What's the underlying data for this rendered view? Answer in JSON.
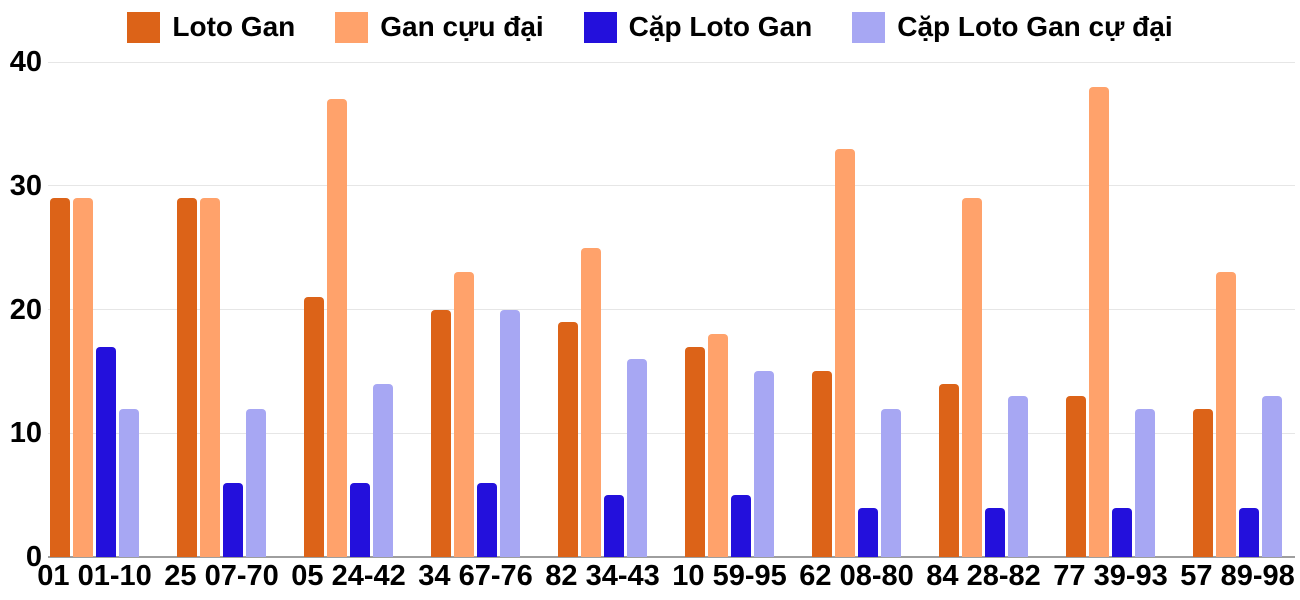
{
  "chart_data": {
    "type": "bar",
    "title": "",
    "categories": [
      "01 01-10",
      "25 07-70",
      "05 24-42",
      "34 67-76",
      "82 34-43",
      "10 59-95",
      "62 08-80",
      "84 28-82",
      "77 39-93",
      "57 89-98"
    ],
    "series": [
      {
        "name": "Loto Gan",
        "color": "#DC6318",
        "values": [
          29,
          29,
          21,
          20,
          19,
          17,
          15,
          14,
          13,
          12
        ]
      },
      {
        "name": "Gan cựu đại",
        "color": "#FFA26B",
        "values": [
          29,
          29,
          37,
          23,
          25,
          18,
          33,
          29,
          38,
          23
        ]
      },
      {
        "name": "Cặp Loto Gan",
        "color": "#2310DC",
        "values": [
          17,
          6,
          6,
          6,
          5,
          5,
          4,
          4,
          4,
          4
        ]
      },
      {
        "name": "Cặp Loto Gan cự đại",
        "color": "#A7A7F3",
        "values": [
          12,
          12,
          14,
          20,
          16,
          15,
          12,
          13,
          12,
          13
        ]
      }
    ],
    "xlabel": "",
    "ylabel": "",
    "ylim": [
      0,
      40
    ],
    "yticks": [
      0,
      10,
      20,
      30,
      40
    ],
    "grid": true,
    "legend_position": "top-center"
  },
  "styles": {
    "background": "#ffffff",
    "grid_color": "#e6e6e6",
    "axis_color": "#9e9e9e",
    "text_color": "#000000"
  }
}
